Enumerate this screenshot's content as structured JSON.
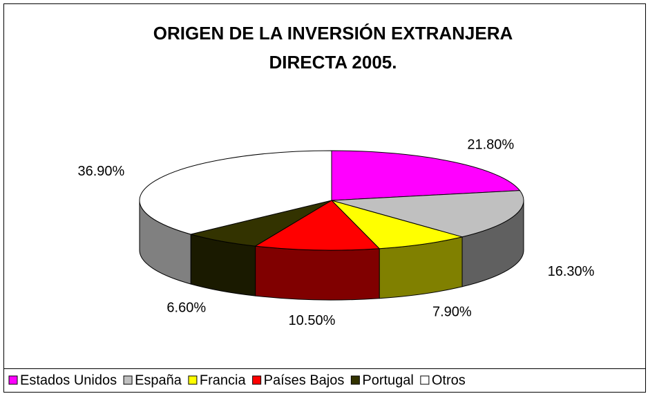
{
  "chart_data": {
    "type": "pie",
    "title": "ORIGEN DE LA INVERSIÓN EXTRANJERA DIRECTA 2005.",
    "categories": [
      "Estados Unidos",
      "España",
      "Francia",
      "Países Bajos",
      "Portugal",
      "Otros"
    ],
    "values": [
      21.8,
      16.3,
      7.9,
      10.5,
      6.6,
      36.9
    ],
    "value_labels": [
      "21.80%",
      "16.30%",
      "7.90%",
      "10.50%",
      "6.60%",
      "36.90%"
    ],
    "colors": [
      "#ff00ff",
      "#c0c0c0",
      "#ffff00",
      "#ff0000",
      "#333300",
      "#ffffff"
    ],
    "legend": "bottom"
  }
}
